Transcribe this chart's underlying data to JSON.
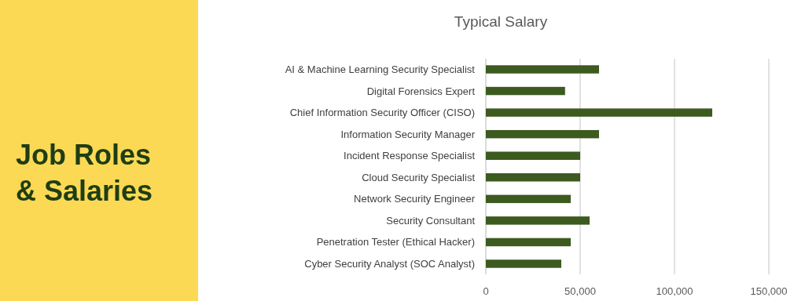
{
  "chart_data": {
    "type": "bar",
    "orientation": "horizontal",
    "title": "Job Roles & Salaries",
    "subtitle": "Typical Salary",
    "categories": [
      "AI & Machine Learning Security Specialist",
      "Digital Forensics Expert",
      "Chief Information Security Officer (CISO)",
      "Information Security Manager",
      "Incident Response Specialist",
      "Cloud Security Specialist",
      "Network Security Engineer",
      "Security Consultant",
      "Penetration Tester (Ethical Hacker)",
      "Cyber Security Analyst (SOC Analyst)"
    ],
    "values": [
      60000,
      42000,
      120000,
      60000,
      50000,
      50000,
      45000,
      55000,
      45000,
      40000
    ],
    "color": "#3d5a1f",
    "xlim": [
      0,
      150000
    ],
    "xticks": [
      0,
      {
        "value": 50000,
        "label": "50,000"
      },
      {
        "value": 100000,
        "label": "100,000"
      },
      {
        "value": 150000,
        "label": "150,000"
      }
    ],
    "grid": "x"
  }
}
